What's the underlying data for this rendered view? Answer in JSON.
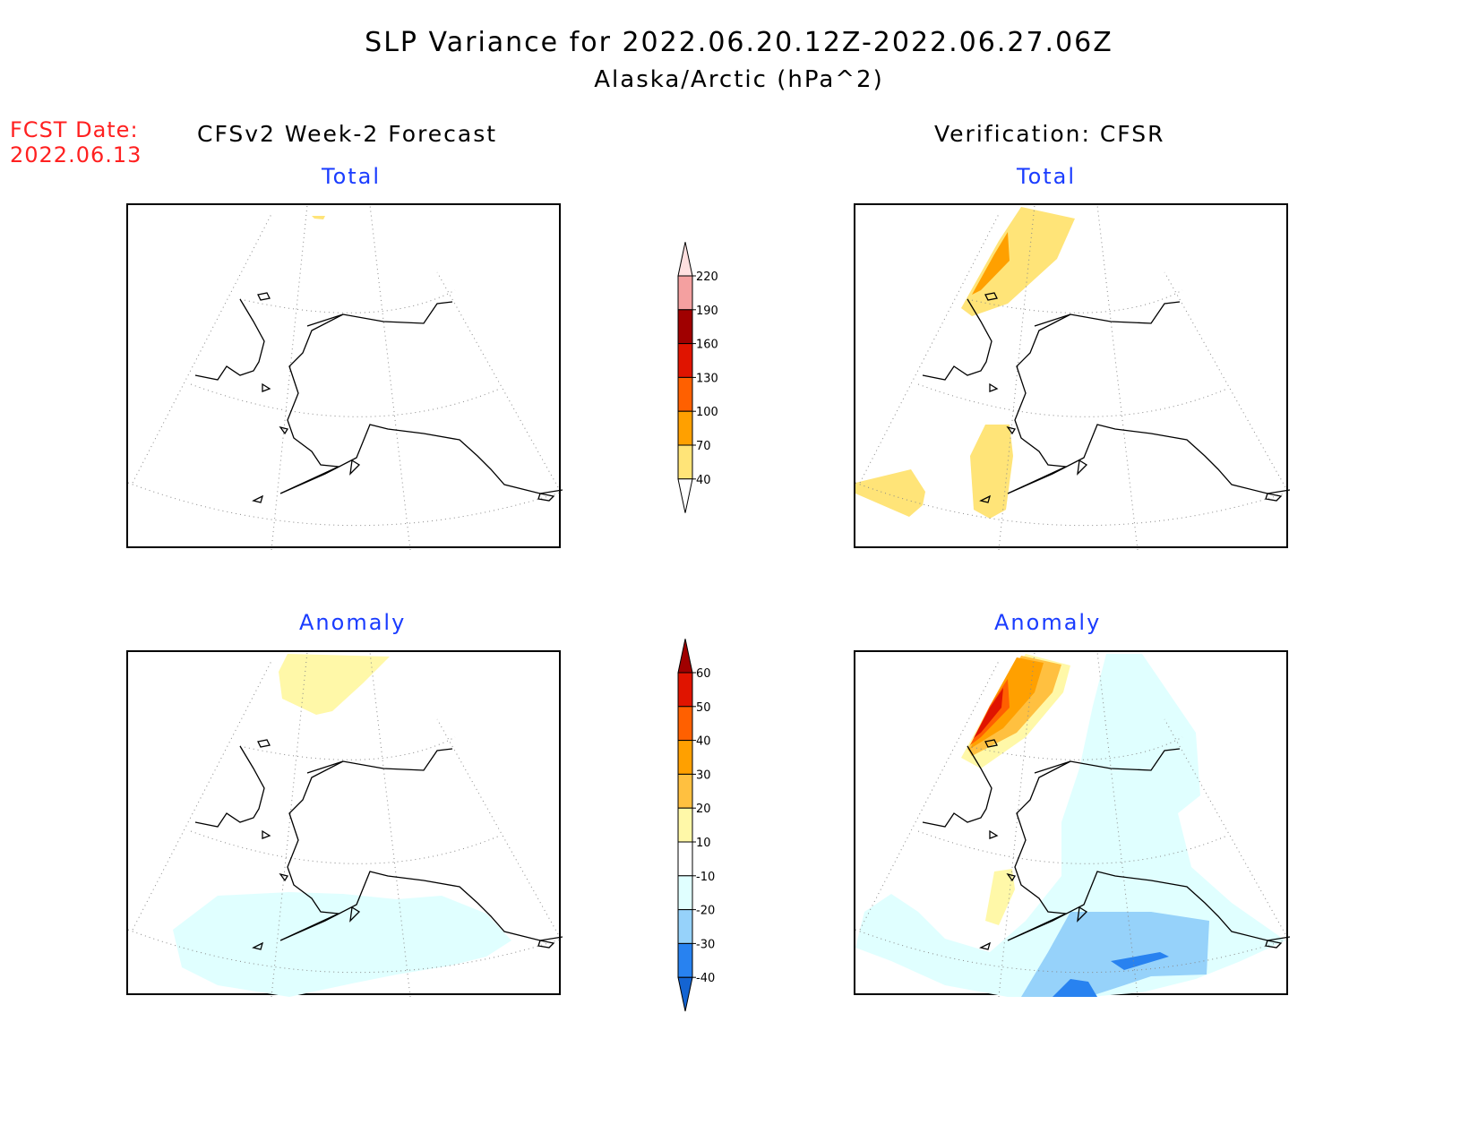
{
  "title": "SLP Variance for 2022.06.20.12Z-2022.06.27.06Z",
  "subtitle": "Alaska/Arctic (hPa^2)",
  "fcst_label": "FCST Date:",
  "fcst_date": "2022.06.13",
  "left_column_title": "CFSv2 Week-2 Forecast",
  "right_column_title": "Verification: CFSR",
  "panels": {
    "top_left": "Total",
    "top_right": "Total",
    "bottom_left": "Anomaly",
    "bottom_right": "Anomaly"
  },
  "colorbars": {
    "total": {
      "labels": [
        "220",
        "190",
        "160",
        "130",
        "100",
        "70",
        "40"
      ],
      "colors": [
        "#ffe0e0",
        "#f4a0a0",
        "#a00000",
        "#e01400",
        "#ff6000",
        "#ffa000",
        "#ffe478",
        "#ffffff"
      ]
    },
    "anomaly": {
      "labels": [
        "60",
        "50",
        "40",
        "30",
        "20",
        "10",
        "-10",
        "-20",
        "-30",
        "-40"
      ],
      "colors": [
        "#a00000",
        "#e01400",
        "#ff6000",
        "#ffa000",
        "#ffc040",
        "#fff8a8",
        "#ffffff",
        "#e0ffff",
        "#96d2fa",
        "#2882f0",
        "#1464d2"
      ]
    }
  }
}
